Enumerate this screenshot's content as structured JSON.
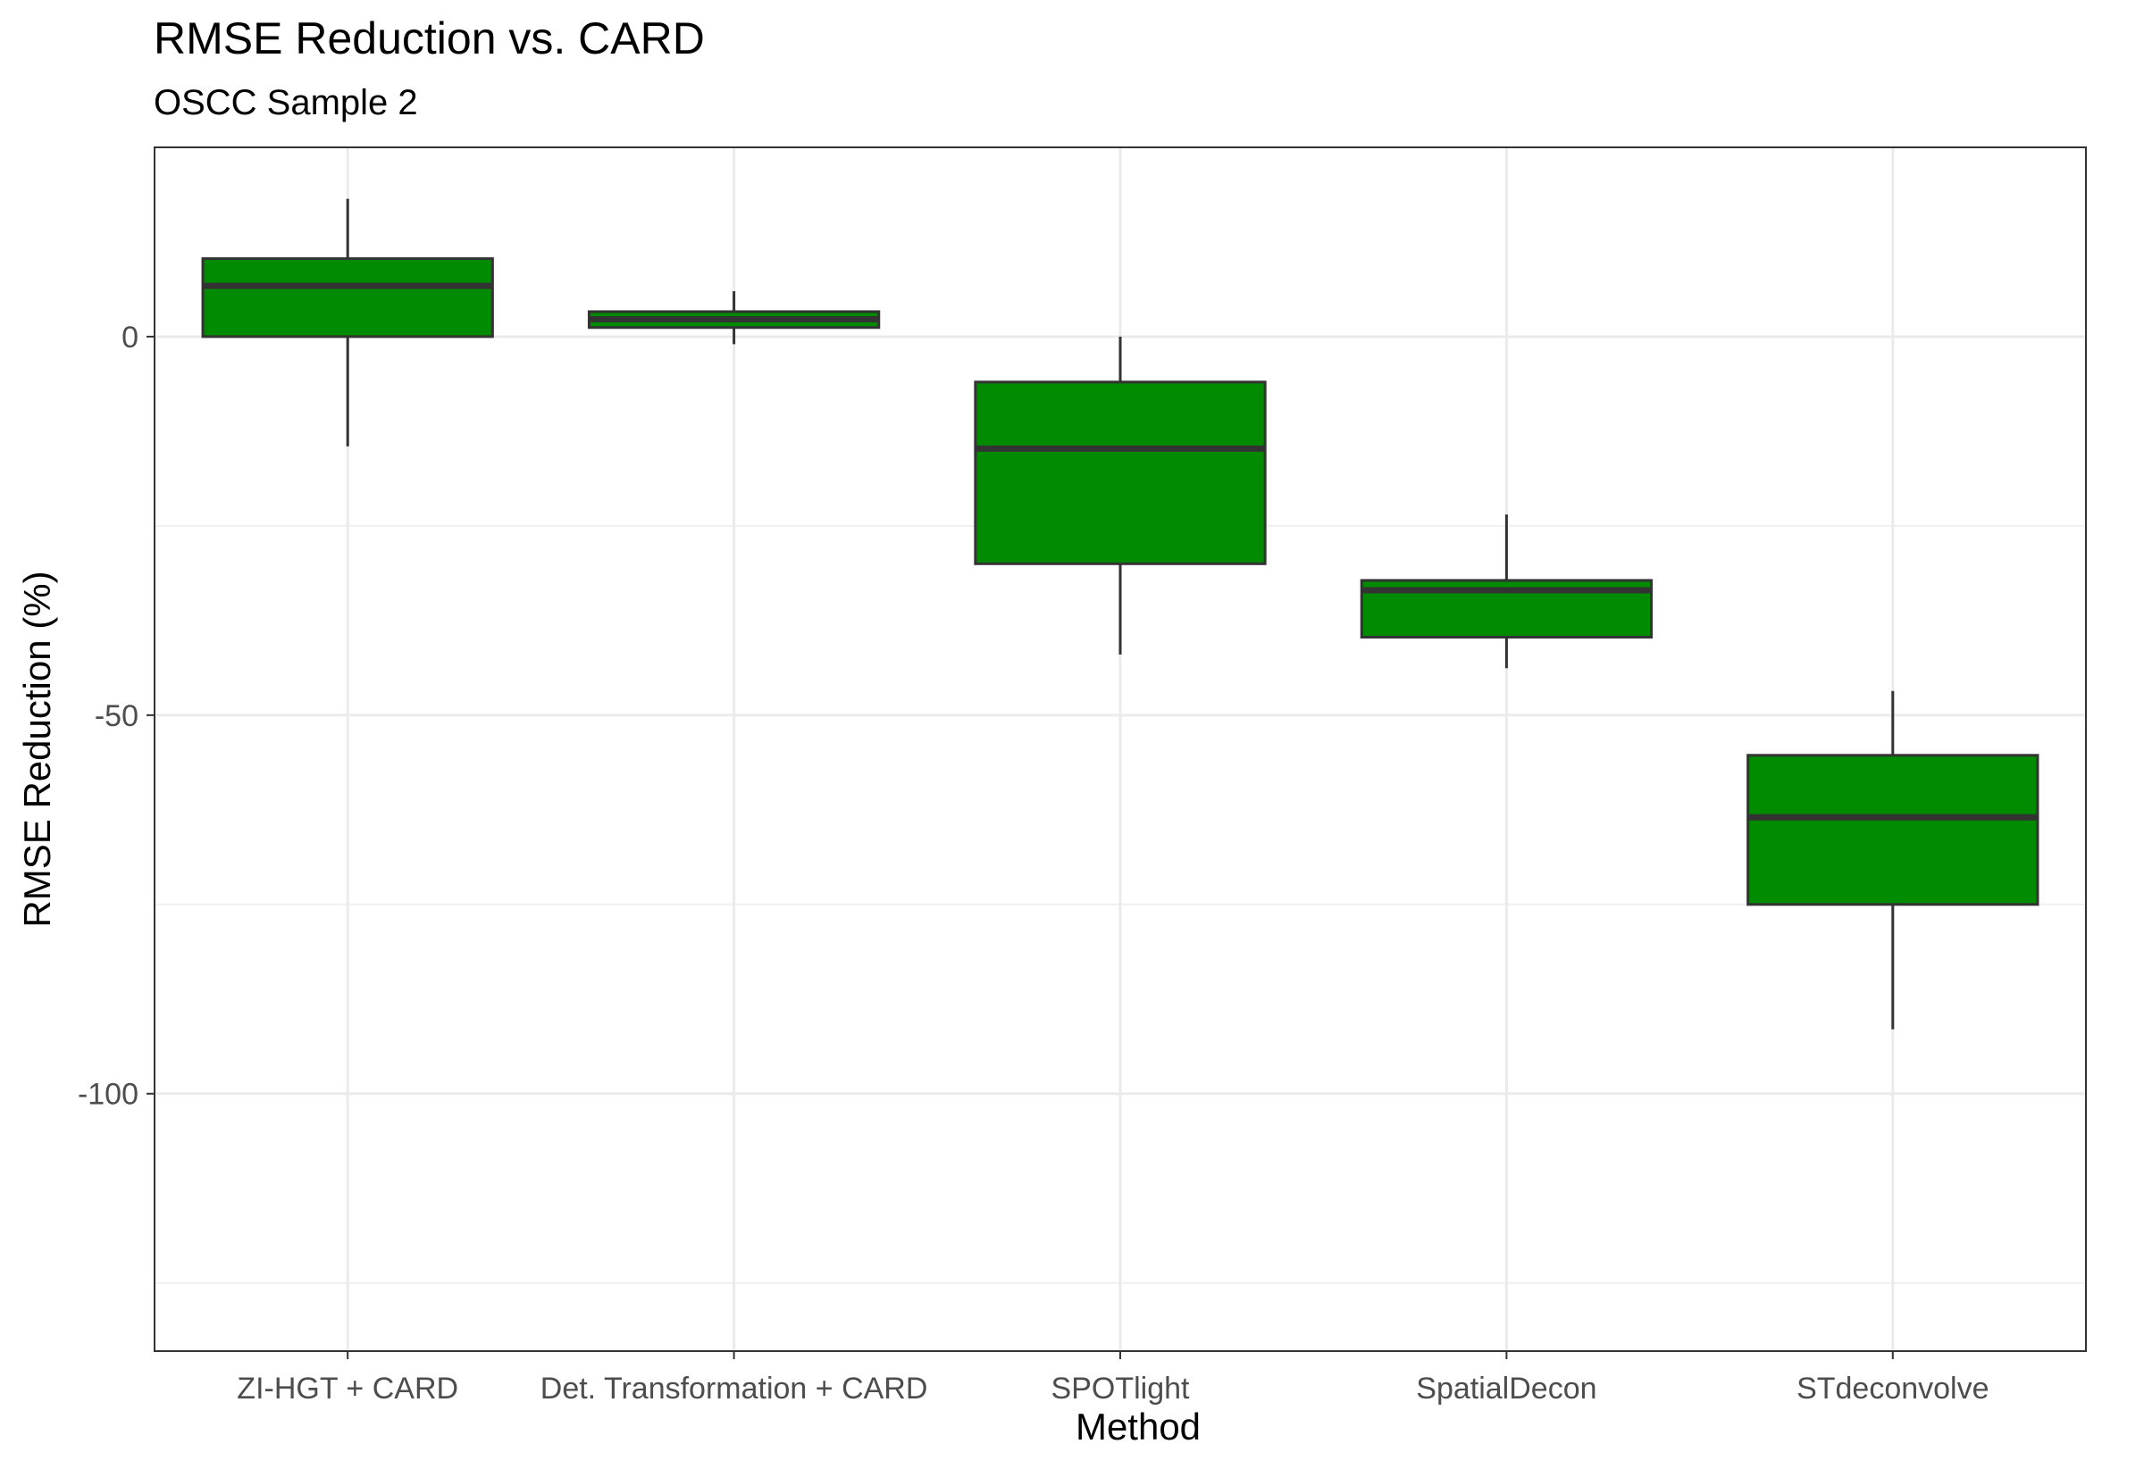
{
  "chart_data": {
    "type": "boxplot",
    "title": "RMSE Reduction vs. CARD",
    "subtitle": "OSCC Sample 2",
    "xlabel": "Method",
    "ylabel": "RMSE Reduction (%)",
    "ylim": [
      -134,
      25
    ],
    "yticks": [
      0,
      -50,
      -100
    ],
    "ytick_labels": [
      "0",
      "-50",
      "-100"
    ],
    "grid": true,
    "box_color": "#008B00",
    "line_color": "#333333",
    "categories": [
      "ZI-HGT + CARD",
      "Det. Transformation + CARD",
      "SPOTlight",
      "SpatialDecon",
      "STdeconvolve"
    ],
    "boxes": [
      {
        "min": -14.5,
        "q1": 0,
        "median": 6.7,
        "q3": 10.3,
        "max": 18.2
      },
      {
        "min": -1.0,
        "q1": 1.2,
        "median": 2.3,
        "q3": 3.3,
        "max": 6.0
      },
      {
        "min": -42.0,
        "q1": -30.0,
        "median": -14.8,
        "q3": -6.0,
        "max": 0
      },
      {
        "min": -43.8,
        "q1": -39.7,
        "median": -33.5,
        "q3": -32.2,
        "max": -23.5
      },
      {
        "min": -91.5,
        "q1": -75.0,
        "median": -63.5,
        "q3": -55.3,
        "max": -46.8
      }
    ]
  }
}
